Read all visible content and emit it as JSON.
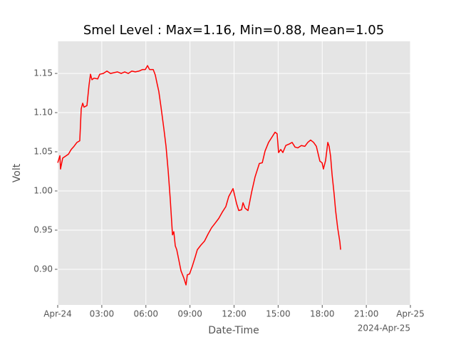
{
  "chart_data": {
    "type": "line",
    "title": "Smel Level : Max=1.16, Min=0.88, Mean=1.05",
    "xlabel": "Date-Time",
    "ylabel": "Volt",
    "x_offset_label": "2024-Apr-25",
    "x": [
      0,
      0.15,
      0.19,
      0.34,
      0.58,
      0.73,
      0.92,
      1.11,
      1.31,
      1.5,
      1.6,
      1.7,
      1.79,
      1.99,
      2.13,
      2.23,
      2.33,
      2.47,
      2.72,
      2.86,
      3.1,
      3.35,
      3.59,
      3.83,
      4.07,
      4.32,
      4.56,
      4.8,
      5.04,
      5.28,
      5.53,
      5.77,
      5.96,
      6.11,
      6.25,
      6.5,
      6.64,
      6.74,
      6.88,
      7.03,
      7.22,
      7.37,
      7.52,
      7.66,
      7.81,
      7.9,
      8.0,
      8.1,
      8.24,
      8.39,
      8.58,
      8.73,
      8.82,
      8.97,
      9.16,
      9.36,
      9.5,
      9.75,
      9.99,
      10.23,
      10.47,
      10.72,
      10.96,
      11.2,
      11.44,
      11.64,
      11.93,
      12.17,
      12.32,
      12.51,
      12.61,
      12.75,
      12.95,
      13.19,
      13.43,
      13.72,
      13.92,
      14.11,
      14.35,
      14.59,
      14.79,
      14.93,
      15.03,
      15.18,
      15.32,
      15.52,
      15.76,
      15.95,
      16.15,
      16.34,
      16.58,
      16.82,
      17.02,
      17.21,
      17.41,
      17.6,
      17.84,
      17.99,
      18.08,
      18.23,
      18.38,
      18.47,
      18.57,
      18.67,
      18.81,
      18.91,
      19.05,
      19.2,
      19.25
    ],
    "series": [
      {
        "name": "Smel Level",
        "color": "#ff0000",
        "values": [
          1.036,
          1.045,
          1.028,
          1.042,
          1.045,
          1.047,
          1.053,
          1.057,
          1.062,
          1.064,
          1.105,
          1.112,
          1.107,
          1.109,
          1.135,
          1.149,
          1.142,
          1.144,
          1.143,
          1.149,
          1.15,
          1.153,
          1.15,
          1.151,
          1.152,
          1.15,
          1.152,
          1.15,
          1.153,
          1.152,
          1.153,
          1.155,
          1.155,
          1.16,
          1.155,
          1.155,
          1.148,
          1.139,
          1.127,
          1.107,
          1.08,
          1.057,
          1.025,
          0.989,
          0.944,
          0.948,
          0.93,
          0.925,
          0.912,
          0.898,
          0.889,
          0.88,
          0.893,
          0.894,
          0.904,
          0.916,
          0.925,
          0.931,
          0.936,
          0.945,
          0.953,
          0.959,
          0.965,
          0.973,
          0.98,
          0.993,
          1.003,
          0.984,
          0.975,
          0.976,
          0.985,
          0.978,
          0.975,
          0.998,
          1.018,
          1.035,
          1.036,
          1.051,
          1.062,
          1.069,
          1.075,
          1.073,
          1.049,
          1.053,
          1.049,
          1.058,
          1.06,
          1.062,
          1.056,
          1.055,
          1.058,
          1.057,
          1.062,
          1.065,
          1.062,
          1.057,
          1.038,
          1.036,
          1.028,
          1.039,
          1.062,
          1.057,
          1.044,
          1.021,
          0.996,
          0.975,
          0.953,
          0.935,
          0.925
        ]
      }
    ],
    "xlim": [
      0,
      24
    ],
    "xticks": [
      {
        "value": 0,
        "label": "Apr-24"
      },
      {
        "value": 3,
        "label": "03:00"
      },
      {
        "value": 6,
        "label": "06:00"
      },
      {
        "value": 9,
        "label": "09:00"
      },
      {
        "value": 12,
        "label": "12:00"
      },
      {
        "value": 15,
        "label": "15:00"
      },
      {
        "value": 18,
        "label": "18:00"
      },
      {
        "value": 21,
        "label": "21:00"
      },
      {
        "value": 24,
        "label": "Apr-25"
      }
    ],
    "ylim": [
      0.8545,
      1.191
    ],
    "yticks": [
      {
        "value": 0.9,
        "label": "0.90"
      },
      {
        "value": 0.95,
        "label": "0.95"
      },
      {
        "value": 1.0,
        "label": "1.00"
      },
      {
        "value": 1.05,
        "label": "1.05"
      },
      {
        "value": 1.1,
        "label": "1.10"
      },
      {
        "value": 1.15,
        "label": "1.15"
      }
    ],
    "grid": true
  }
}
